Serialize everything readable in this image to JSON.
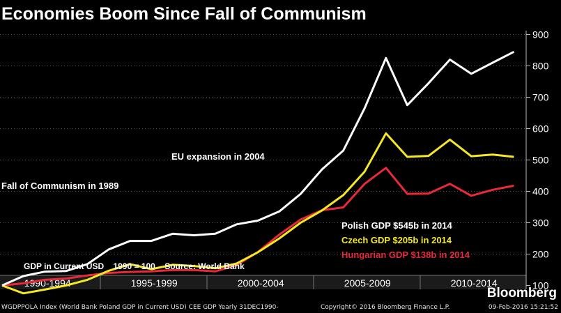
{
  "title": "Economies Boom Since Fall of Communism",
  "chart_data": {
    "type": "line",
    "x": [
      1990,
      1991,
      1992,
      1993,
      1994,
      1995,
      1996,
      1997,
      1998,
      1999,
      2000,
      2001,
      2002,
      2003,
      2004,
      2005,
      2006,
      2007,
      2008,
      2009,
      2010,
      2011,
      2012,
      2013,
      2014
    ],
    "series": [
      {
        "name": "Polish GDP $545b in 2014",
        "color": "#ffffff",
        "values": [
          100,
          130,
          144,
          146,
          168,
          215,
          242,
          242,
          265,
          260,
          265,
          295,
          307,
          336,
          392,
          470,
          530,
          665,
          825,
          675,
          745,
          820,
          775,
          810,
          845
        ]
      },
      {
        "name": "Czech GDP $205b in 2014",
        "color": "#f5e823",
        "values": [
          100,
          75,
          87,
          100,
          118,
          147,
          168,
          152,
          166,
          162,
          155,
          170,
          206,
          250,
          300,
          339,
          388,
          463,
          585,
          510,
          513,
          565,
          512,
          517,
          510
        ]
      },
      {
        "name": "Hungarian GDP $138b in 2014",
        "color": "#e8293a",
        "values": [
          100,
          107,
          118,
          122,
          132,
          140,
          143,
          145,
          149,
          149,
          145,
          165,
          207,
          262,
          310,
          340,
          349,
          424,
          475,
          392,
          393,
          424,
          386,
          405,
          418
        ]
      }
    ],
    "ylim": [
      50,
      910
    ],
    "yticks": [
      "900",
      "800",
      "700",
      "600",
      "500",
      "400",
      "300",
      "200",
      "100"
    ],
    "ytick_values": [
      900,
      800,
      700,
      600,
      500,
      400,
      300,
      200,
      100
    ],
    "xtick_labels": [
      "1990-1994",
      "1995-1999",
      "2000-2004",
      "2005-2009",
      "2010-2014"
    ],
    "annotations": {
      "communism": "Fall of Communism in 1989",
      "eu": "EU expansion in 2004",
      "source": "GDP in Current USD    1990 = 100    Source: World Bank"
    }
  },
  "footer": {
    "left": "WGDPPOLA Index (World Bank Poland GDP in Current USD) CEE GDP  Yearly 31DEC1990-",
    "center": "Copyright© 2016 Bloomberg Finance L.P.",
    "right": "09-Feb-2016 15:21:52"
  },
  "brand": "Bloomberg"
}
